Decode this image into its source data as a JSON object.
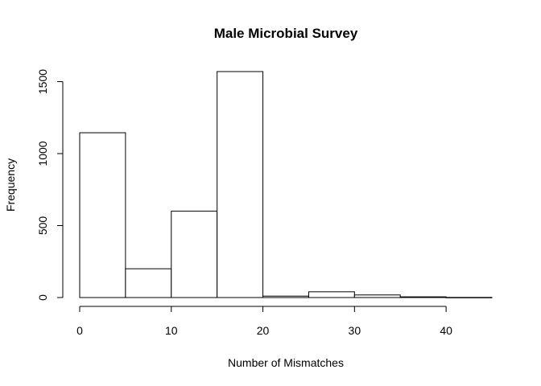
{
  "chart_data": {
    "type": "bar",
    "subtype": "histogram",
    "title": "Male Microbial Survey",
    "xlabel": "Number of Mismatches",
    "ylabel": "Frequency",
    "bins": [
      {
        "start": 0,
        "end": 5,
        "count": 1145
      },
      {
        "start": 5,
        "end": 10,
        "count": 200
      },
      {
        "start": 10,
        "end": 15,
        "count": 600
      },
      {
        "start": 15,
        "end": 20,
        "count": 1570
      },
      {
        "start": 20,
        "end": 25,
        "count": 10
      },
      {
        "start": 25,
        "end": 30,
        "count": 40
      },
      {
        "start": 30,
        "end": 35,
        "count": 18
      },
      {
        "start": 35,
        "end": 40,
        "count": 5
      },
      {
        "start": 40,
        "end": 45,
        "count": 1
      }
    ],
    "xlim": [
      0,
      45
    ],
    "ylim": [
      0,
      1570
    ],
    "x_ticks": [
      0,
      10,
      20,
      30,
      40
    ],
    "y_ticks": [
      0,
      500,
      1000,
      1500
    ],
    "grid": false,
    "legend": "none",
    "bar_fill": "#ffffff",
    "bar_stroke": "#000000"
  }
}
